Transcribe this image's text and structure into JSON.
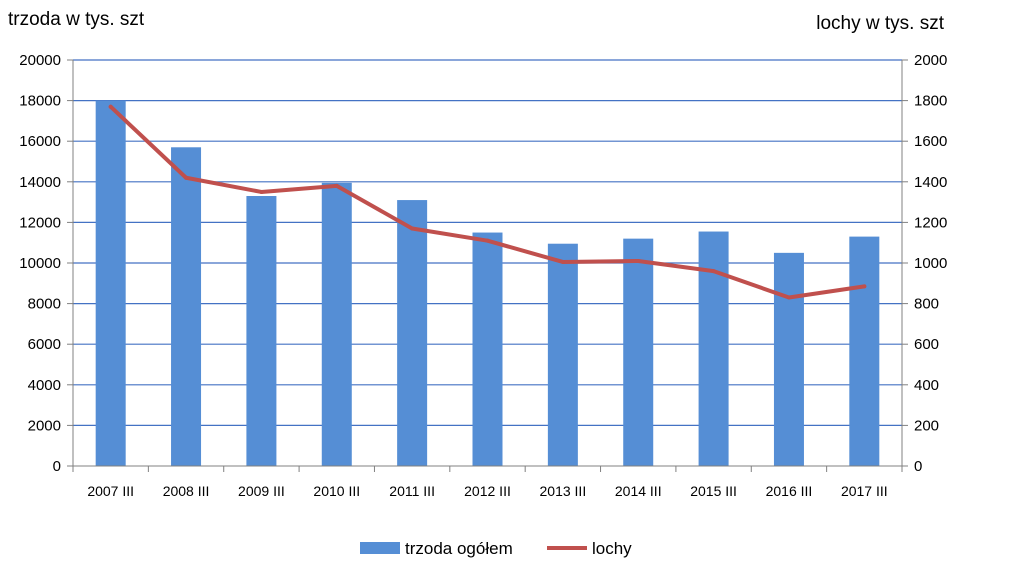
{
  "chart_data": {
    "type": "bar",
    "categories": [
      "2007 III",
      "2008 III",
      "2009 III",
      "2010 III",
      "2011 III",
      "2012 III",
      "2013 III",
      "2014 III",
      "2015 III",
      "2016 III",
      "2017 III"
    ],
    "series": [
      {
        "name": "trzoda ogółem",
        "type": "bar",
        "axis": "left",
        "color": "#558ED5",
        "values": [
          18000,
          15700,
          13300,
          13950,
          13100,
          11500,
          10950,
          11200,
          11550,
          10500,
          11300
        ]
      },
      {
        "name": "lochy",
        "type": "line",
        "axis": "right",
        "color": "#C0504D",
        "values": [
          1770,
          1420,
          1350,
          1380,
          1170,
          1110,
          1005,
          1010,
          960,
          830,
          885
        ]
      }
    ],
    "ylabel_left": "trzoda w tys. szt",
    "ylabel_right": "lochy w tys. szt",
    "ylim_left": [
      0,
      20000
    ],
    "ylim_right": [
      0,
      2000
    ],
    "yticks_left": [
      "0",
      "2000",
      "4000",
      "6000",
      "8000",
      "10000",
      "12000",
      "14000",
      "16000",
      "18000",
      "20000"
    ],
    "yticks_right": [
      "0",
      "200",
      "400",
      "600",
      "800",
      "1000",
      "1200",
      "1400",
      "1600",
      "1800",
      "2000"
    ],
    "grid": true,
    "gridline_color": "#4472C4",
    "legend_position": "bottom"
  }
}
